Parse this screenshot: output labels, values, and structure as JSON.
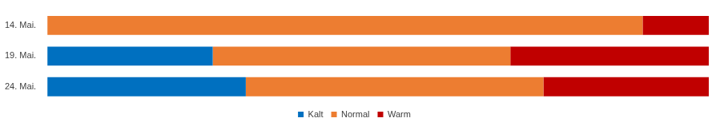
{
  "chart_data": {
    "type": "bar",
    "orientation": "horizontal",
    "stacked": true,
    "categories": [
      "14. Mai.",
      "19. Mai.",
      "24. Mai."
    ],
    "series": [
      {
        "name": "Kalt",
        "color": "#0070c0",
        "values": [
          0,
          25,
          30
        ]
      },
      {
        "name": "Normal",
        "color": "#ed7d31",
        "values": [
          90,
          45,
          45
        ]
      },
      {
        "name": "Warm",
        "color": "#c00000",
        "values": [
          10,
          30,
          25
        ]
      }
    ],
    "xlim": [
      0,
      100
    ],
    "grid": false,
    "legend": "bottom",
    "tick_labels": "y"
  }
}
